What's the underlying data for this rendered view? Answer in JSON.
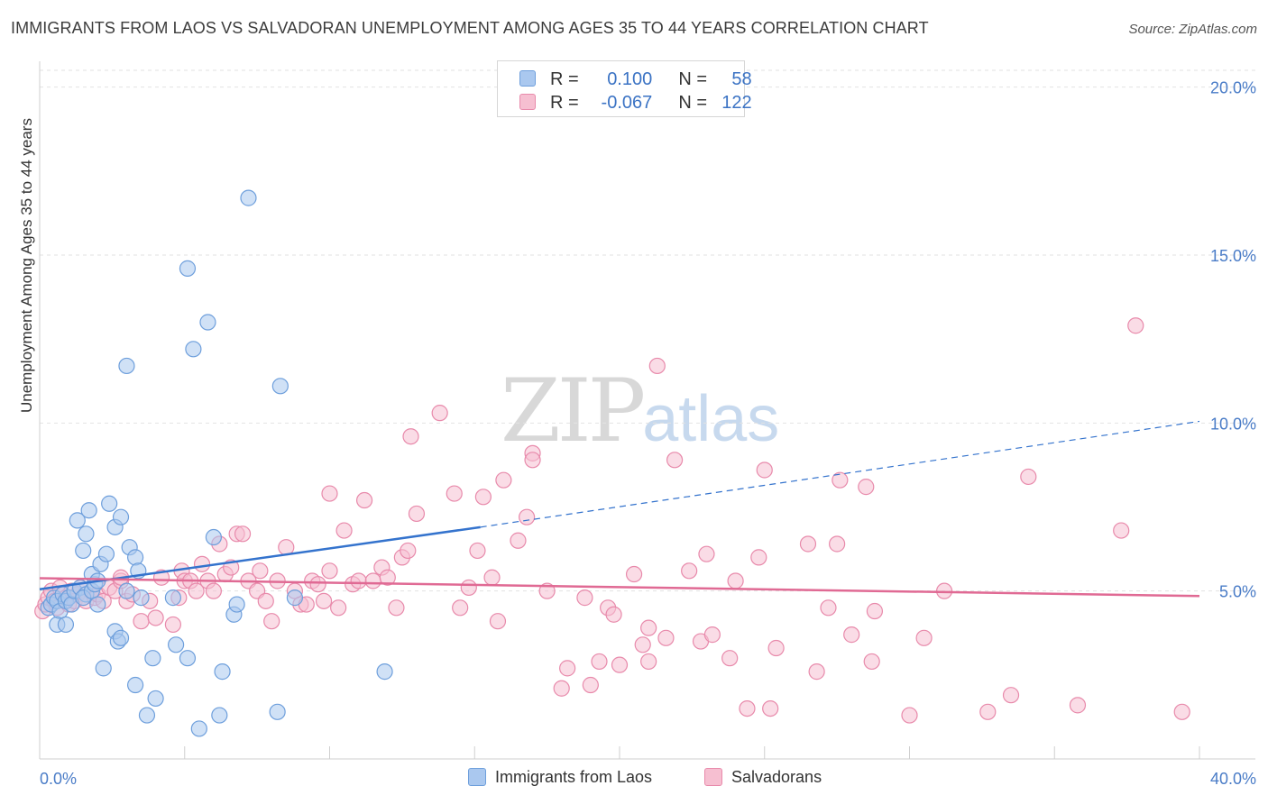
{
  "header": {
    "title": "IMMIGRANTS FROM LAOS VS SALVADORAN UNEMPLOYMENT AMONG AGES 35 TO 44 YEARS CORRELATION CHART",
    "source": "Source: ZipAtlas.com"
  },
  "watermark": {
    "part1": "ZIP",
    "part2": "atlas"
  },
  "legend": {
    "series1": {
      "r_label": "R =",
      "r_value": "0.100",
      "n_label": "N =",
      "n_value": "58"
    },
    "series2": {
      "r_label": "R =",
      "r_value": "-0.067",
      "n_label": "N =",
      "n_value": "122"
    }
  },
  "colors": {
    "laos_fill": "#aac8ef",
    "laos_stroke": "#6e9fdc",
    "laos_line": "#3473cd",
    "salv_fill": "#f6bfd1",
    "salv_stroke": "#e88aab",
    "salv_line": "#e06a94",
    "tick_text": "#4a7cc7",
    "grid": "#e2e2e2"
  },
  "chart_data": {
    "type": "scatter",
    "title": "IMMIGRANTS FROM LAOS VS SALVADORAN UNEMPLOYMENT AMONG AGES 35 TO 44 YEARS CORRELATION CHART",
    "xlabel": "",
    "ylabel": "Unemployment Among Ages 35 to 44 years",
    "xlim": [
      0,
      40
    ],
    "ylim": [
      0,
      20.5
    ],
    "x_tick_labels": [
      "0.0%",
      "40.0%"
    ],
    "y_ticks": [
      5,
      10,
      15,
      20
    ],
    "y_tick_labels": [
      "5.0%",
      "10.0%",
      "15.0%",
      "20.0%"
    ],
    "grid": true,
    "legend_position": "top-center",
    "series": [
      {
        "name": "Immigrants from Laos",
        "r": 0.1,
        "n": 58,
        "trend": {
          "x0": 0.0,
          "y0": 5.05,
          "x1": 15.2,
          "y1": 6.9,
          "dashed_to_x": 40.0,
          "dashed_to_y": 10.05
        },
        "points": [
          [
            0.3,
            4.5
          ],
          [
            0.4,
            4.6
          ],
          [
            0.5,
            4.8
          ],
          [
            0.6,
            4.7
          ],
          [
            0.7,
            4.4
          ],
          [
            0.8,
            4.9
          ],
          [
            0.9,
            4.7
          ],
          [
            1.0,
            4.8
          ],
          [
            1.1,
            4.6
          ],
          [
            1.2,
            5.0
          ],
          [
            1.4,
            5.1
          ],
          [
            1.6,
            4.9
          ],
          [
            1.5,
            4.8
          ],
          [
            1.8,
            5.0
          ],
          [
            1.9,
            5.2
          ],
          [
            0.6,
            4.0
          ],
          [
            0.9,
            4.0
          ],
          [
            1.3,
            7.1
          ],
          [
            1.5,
            6.2
          ],
          [
            1.6,
            6.7
          ],
          [
            1.7,
            7.4
          ],
          [
            1.8,
            5.5
          ],
          [
            2.0,
            4.6
          ],
          [
            2.1,
            5.8
          ],
          [
            2.3,
            6.1
          ],
          [
            2.4,
            7.6
          ],
          [
            2.6,
            6.9
          ],
          [
            2.8,
            7.2
          ],
          [
            2.0,
            5.3
          ],
          [
            3.0,
            5.0
          ],
          [
            3.1,
            6.3
          ],
          [
            3.3,
            6.0
          ],
          [
            3.4,
            5.6
          ],
          [
            3.5,
            4.8
          ],
          [
            2.6,
            3.8
          ],
          [
            2.7,
            3.5
          ],
          [
            2.8,
            3.6
          ],
          [
            2.2,
            2.7
          ],
          [
            3.3,
            2.2
          ],
          [
            3.9,
            3.0
          ],
          [
            4.0,
            1.8
          ],
          [
            3.7,
            1.3
          ],
          [
            4.7,
            3.4
          ],
          [
            5.1,
            3.0
          ],
          [
            4.6,
            4.8
          ],
          [
            5.5,
            0.9
          ],
          [
            6.2,
            1.3
          ],
          [
            6.3,
            2.6
          ],
          [
            6.0,
            6.6
          ],
          [
            6.7,
            4.3
          ],
          [
            6.8,
            4.6
          ],
          [
            8.2,
            1.4
          ],
          [
            8.8,
            4.8
          ],
          [
            3.0,
            11.7
          ],
          [
            5.1,
            14.6
          ],
          [
            5.3,
            12.2
          ],
          [
            5.8,
            13.0
          ],
          [
            7.2,
            16.7
          ],
          [
            8.3,
            11.1
          ],
          [
            11.9,
            2.6
          ]
        ]
      },
      {
        "name": "Salvadorans",
        "r": -0.067,
        "n": 122,
        "trend": {
          "x0": 0.0,
          "y0": 5.38,
          "x1": 40.0,
          "y1": 4.85
        },
        "points": [
          [
            0.1,
            4.4
          ],
          [
            0.2,
            4.6
          ],
          [
            0.3,
            4.8
          ],
          [
            0.4,
            5.0
          ],
          [
            0.5,
            4.7
          ],
          [
            0.6,
            4.5
          ],
          [
            0.7,
            5.1
          ],
          [
            0.8,
            4.9
          ],
          [
            0.9,
            4.8
          ],
          [
            1.0,
            4.6
          ],
          [
            1.1,
            5.0
          ],
          [
            1.2,
            4.7
          ],
          [
            1.3,
            4.9
          ],
          [
            1.4,
            5.1
          ],
          [
            1.5,
            4.8
          ],
          [
            1.6,
            4.7
          ],
          [
            1.8,
            5.0
          ],
          [
            1.9,
            4.8
          ],
          [
            2.0,
            4.9
          ],
          [
            2.2,
            4.7
          ],
          [
            2.4,
            5.1
          ],
          [
            2.6,
            5.0
          ],
          [
            2.8,
            5.3
          ],
          [
            3.0,
            4.7
          ],
          [
            3.2,
            4.9
          ],
          [
            2.8,
            5.4
          ],
          [
            3.5,
            4.1
          ],
          [
            3.8,
            4.7
          ],
          [
            4.0,
            4.2
          ],
          [
            4.2,
            5.4
          ],
          [
            4.6,
            4.0
          ],
          [
            4.8,
            4.8
          ],
          [
            4.9,
            5.6
          ],
          [
            5.0,
            5.3
          ],
          [
            5.2,
            5.3
          ],
          [
            5.4,
            5.0
          ],
          [
            5.6,
            5.8
          ],
          [
            5.8,
            5.3
          ],
          [
            6.0,
            5.0
          ],
          [
            6.2,
            6.4
          ],
          [
            6.4,
            5.5
          ],
          [
            6.6,
            5.7
          ],
          [
            6.8,
            6.7
          ],
          [
            7.0,
            6.7
          ],
          [
            7.2,
            5.3
          ],
          [
            7.5,
            5.0
          ],
          [
            7.6,
            5.6
          ],
          [
            7.8,
            4.7
          ],
          [
            8.0,
            4.1
          ],
          [
            8.2,
            5.3
          ],
          [
            8.5,
            6.3
          ],
          [
            8.8,
            5.0
          ],
          [
            9.0,
            4.6
          ],
          [
            9.2,
            4.6
          ],
          [
            9.4,
            5.3
          ],
          [
            9.6,
            5.2
          ],
          [
            9.8,
            4.7
          ],
          [
            10.0,
            5.6
          ],
          [
            10.3,
            4.5
          ],
          [
            10.5,
            6.8
          ],
          [
            10.8,
            5.2
          ],
          [
            11.0,
            5.3
          ],
          [
            11.2,
            7.7
          ],
          [
            11.5,
            5.3
          ],
          [
            11.8,
            5.7
          ],
          [
            12.0,
            5.4
          ],
          [
            12.3,
            4.5
          ],
          [
            12.5,
            6.0
          ],
          [
            12.7,
            6.2
          ],
          [
            13.0,
            7.3
          ],
          [
            10.0,
            7.9
          ],
          [
            12.8,
            9.6
          ],
          [
            13.8,
            10.3
          ],
          [
            14.3,
            7.9
          ],
          [
            14.5,
            4.5
          ],
          [
            14.8,
            5.1
          ],
          [
            15.1,
            6.2
          ],
          [
            15.3,
            7.8
          ],
          [
            15.6,
            5.4
          ],
          [
            15.8,
            4.1
          ],
          [
            16.0,
            8.3
          ],
          [
            16.5,
            6.5
          ],
          [
            16.8,
            7.2
          ],
          [
            17.0,
            9.1
          ],
          [
            17.0,
            8.9
          ],
          [
            17.5,
            5.0
          ],
          [
            18.0,
            2.1
          ],
          [
            18.2,
            2.7
          ],
          [
            18.8,
            4.8
          ],
          [
            19.0,
            2.2
          ],
          [
            19.3,
            2.9
          ],
          [
            19.6,
            4.5
          ],
          [
            19.8,
            4.3
          ],
          [
            20.0,
            2.8
          ],
          [
            20.5,
            5.5
          ],
          [
            20.8,
            3.4
          ],
          [
            21.0,
            2.9
          ],
          [
            21.3,
            11.7
          ],
          [
            21.6,
            3.6
          ],
          [
            21.9,
            8.9
          ],
          [
            21.0,
            3.9
          ],
          [
            22.4,
            5.6
          ],
          [
            22.8,
            3.5
          ],
          [
            23.0,
            6.1
          ],
          [
            23.2,
            3.7
          ],
          [
            23.8,
            3.0
          ],
          [
            24.0,
            5.3
          ],
          [
            24.4,
            1.5
          ],
          [
            24.8,
            6.0
          ],
          [
            25.0,
            8.6
          ],
          [
            25.2,
            1.5
          ],
          [
            25.4,
            3.3
          ],
          [
            26.5,
            6.4
          ],
          [
            26.8,
            2.6
          ],
          [
            27.2,
            4.5
          ],
          [
            27.5,
            6.4
          ],
          [
            27.6,
            8.3
          ],
          [
            28.0,
            3.7
          ],
          [
            28.5,
            8.1
          ],
          [
            28.7,
            2.9
          ],
          [
            28.8,
            4.4
          ],
          [
            30.0,
            1.3
          ],
          [
            30.5,
            3.6
          ],
          [
            31.2,
            5.0
          ],
          [
            32.7,
            1.4
          ],
          [
            33.5,
            1.9
          ],
          [
            34.1,
            8.4
          ],
          [
            35.8,
            1.6
          ],
          [
            37.3,
            6.8
          ],
          [
            37.8,
            12.9
          ],
          [
            39.4,
            1.4
          ]
        ]
      }
    ]
  }
}
